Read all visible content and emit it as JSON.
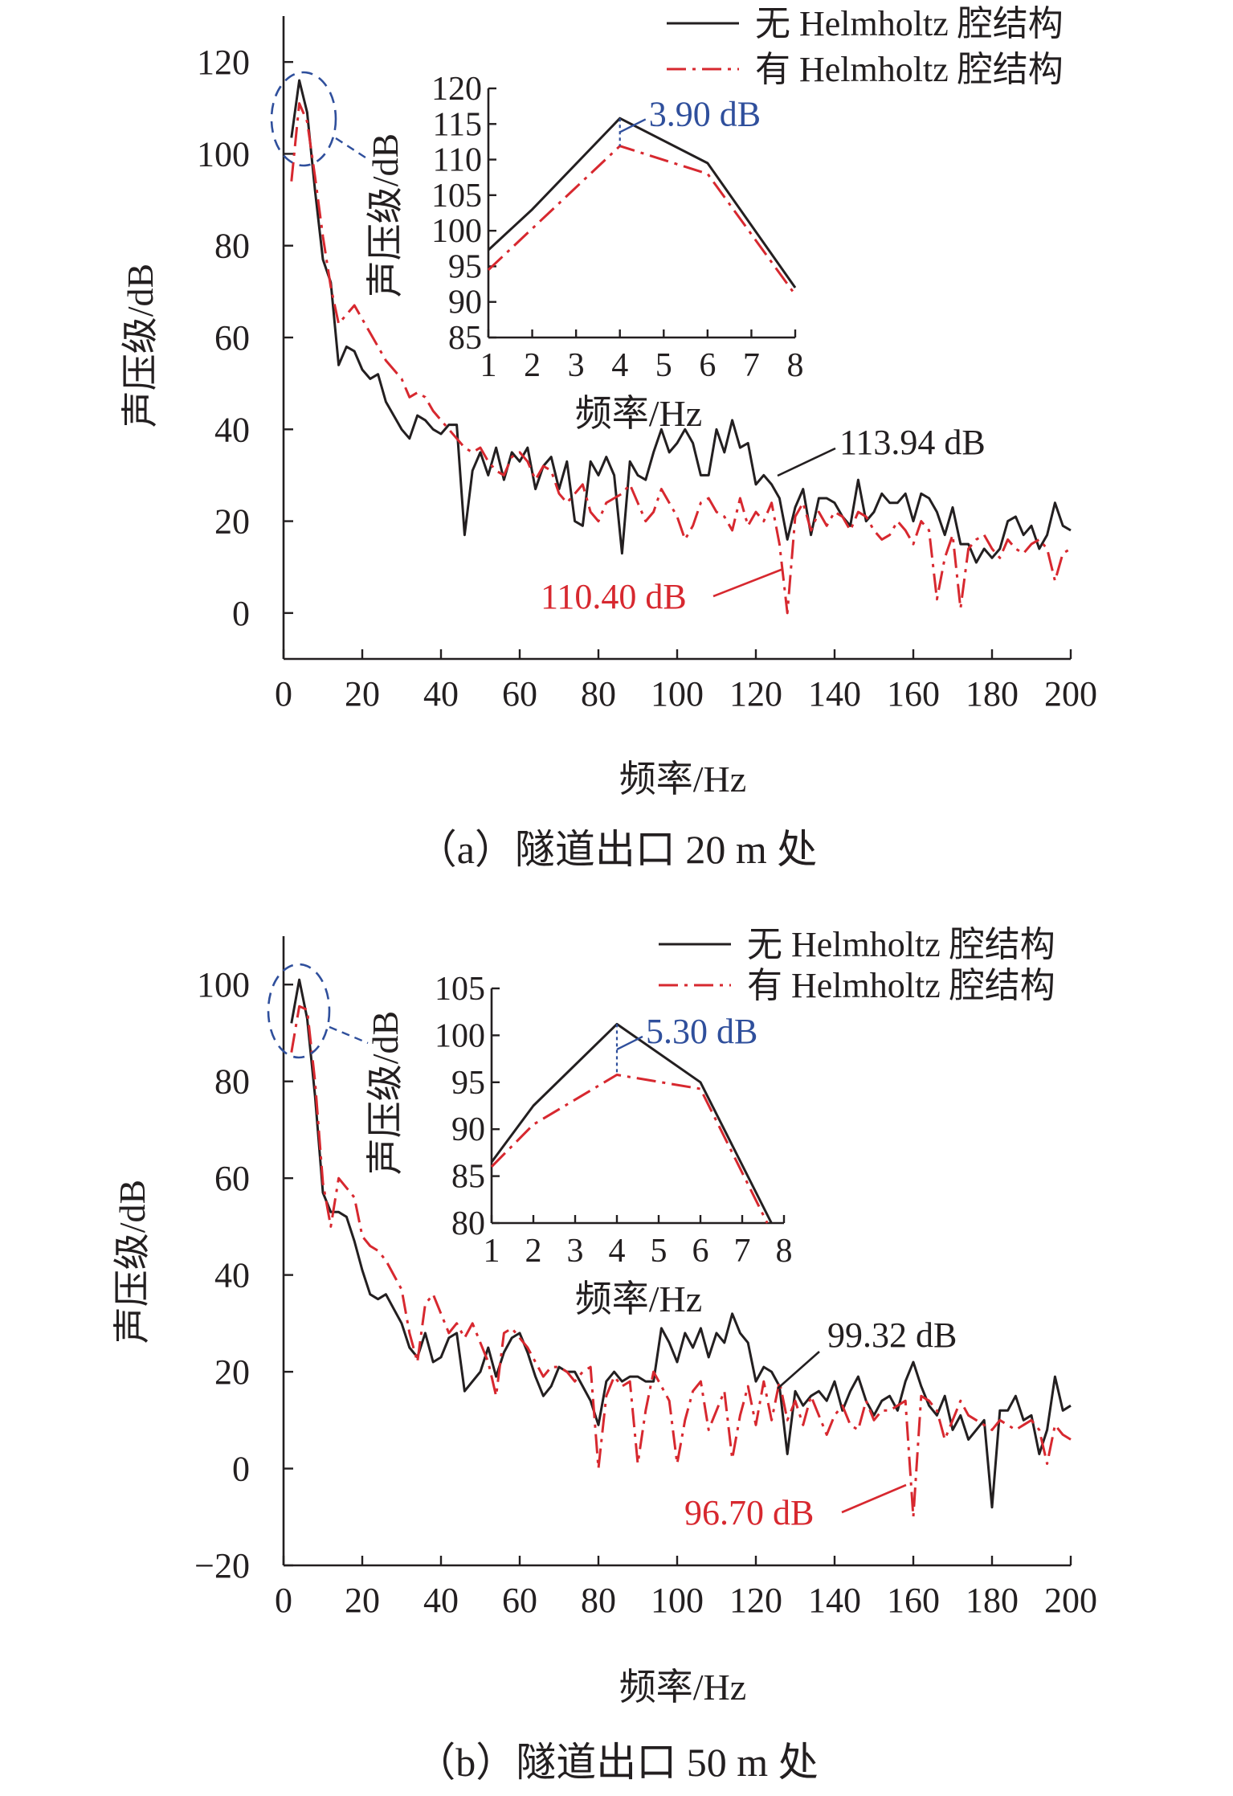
{
  "legend": {
    "solid_label": "无 Helmholtz 腔结构",
    "dashed_label": "有 Helmholtz 腔结构"
  },
  "colors": {
    "solid": "#231f20",
    "dashed": "#d7282f",
    "highlight": "#2f4f9c"
  },
  "chart_data": [
    {
      "type": "line",
      "panel": "a",
      "caption": "（a）隧道出口 20 m 处",
      "xlabel": "频率/Hz",
      "ylabel": "声压级/dB",
      "xlim": [
        0,
        200
      ],
      "ylim": [
        -10,
        130
      ],
      "xticks": [
        0,
        20,
        40,
        60,
        80,
        100,
        120,
        140,
        160,
        180,
        200
      ],
      "yticks": [
        0,
        20,
        40,
        60,
        80,
        100,
        120
      ],
      "x": [
        2,
        4,
        6,
        8,
        10,
        12,
        14,
        16,
        18,
        20,
        22,
        24,
        26,
        28,
        30,
        32,
        34,
        36,
        38,
        40,
        42,
        44,
        46,
        48,
        50,
        52,
        54,
        56,
        58,
        60,
        62,
        64,
        66,
        68,
        70,
        72,
        74,
        76,
        78,
        80,
        82,
        84,
        86,
        88,
        90,
        92,
        94,
        96,
        98,
        100,
        102,
        104,
        106,
        108,
        110,
        112,
        114,
        116,
        118,
        120,
        122,
        124,
        126,
        128,
        130,
        132,
        134,
        136,
        138,
        140,
        142,
        144,
        146,
        148,
        150,
        152,
        154,
        156,
        158,
        160,
        162,
        164,
        166,
        168,
        170,
        172,
        174,
        176,
        178,
        180,
        182,
        184,
        186,
        188,
        190,
        192,
        194,
        196,
        198,
        200
      ],
      "series": [
        {
          "name": "无 Helmholtz 腔结构",
          "style": "solid",
          "values": [
            103.5,
            116.0,
            109.0,
            92.0,
            77.0,
            72.0,
            54.0,
            58.0,
            57.0,
            53.0,
            51.0,
            52.0,
            46.0,
            43.0,
            40.0,
            38.0,
            43.0,
            42.0,
            40.0,
            39.0,
            41.0,
            41.0,
            17.0,
            31.0,
            35.0,
            30.0,
            36.0,
            29.0,
            35.0,
            33.0,
            36.0,
            27.0,
            32.0,
            34.0,
            27.0,
            33.0,
            20.0,
            19.0,
            33.0,
            30.0,
            34.0,
            30.0,
            13.0,
            33.0,
            30.0,
            29.0,
            35.0,
            40.0,
            35.0,
            37.0,
            40.0,
            37.0,
            30.0,
            30.0,
            40.0,
            35.0,
            42.0,
            36.0,
            37.0,
            28.0,
            30.0,
            28.0,
            25.0,
            16.0,
            23.0,
            27.0,
            17.0,
            25.0,
            25.0,
            24.0,
            21.0,
            19.0,
            29.0,
            20.0,
            22.0,
            26.0,
            24.0,
            24.0,
            26.0,
            20.0,
            26.0,
            25.0,
            22.0,
            17.0,
            23.0,
            15.0,
            15.0,
            11.0,
            14.0,
            12.0,
            14.0,
            20.0,
            21.0,
            17.0,
            19.0,
            14.0,
            17.0,
            24.0,
            19.0,
            18.0
          ]
        },
        {
          "name": "有 Helmholtz 腔结构",
          "style": "dash-dot",
          "values": [
            94.0,
            111.0,
            107.0,
            95.0,
            82.0,
            71.0,
            63.0,
            65.0,
            67.0,
            64.0,
            61.0,
            58.0,
            55.0,
            53.0,
            51.0,
            47.0,
            48.0,
            47.0,
            44.0,
            42.0,
            40.0,
            38.0,
            36.0,
            35.0,
            36.0,
            33.0,
            31.0,
            30.0,
            34.0,
            35.0,
            33.0,
            29.0,
            32.0,
            31.0,
            26.0,
            24.0,
            26.0,
            28.0,
            22.0,
            20.0,
            24.0,
            25.0,
            26.0,
            28.0,
            24.0,
            20.0,
            22.0,
            27.0,
            24.0,
            21.0,
            16.0,
            19.0,
            24.0,
            25.0,
            22.0,
            21.0,
            18.0,
            25.0,
            19.0,
            22.0,
            20.0,
            24.0,
            15.0,
            0.0,
            21.0,
            24.0,
            18.0,
            22.0,
            19.0,
            22.0,
            21.0,
            18.0,
            22.0,
            21.0,
            18.0,
            16.0,
            17.0,
            20.0,
            18.0,
            15.0,
            20.0,
            18.0,
            3.0,
            12.0,
            17.0,
            1.0,
            14.0,
            16.0,
            17.0,
            14.0,
            12.0,
            16.0,
            14.0,
            13.0,
            15.0,
            16.0,
            14.0,
            7.0,
            13.0,
            14.0
          ]
        }
      ],
      "annotations": [
        {
          "label": "113.94 dB",
          "series": "无 Helmholtz 腔结构"
        },
        {
          "label": "110.40 dB",
          "series": "有 Helmholtz 腔结构"
        }
      ],
      "inset": {
        "xlabel": "频率/Hz",
        "ylabel": "声压级/dB",
        "xlim": [
          1,
          8
        ],
        "ylim": [
          85,
          120
        ],
        "xticks": [
          1,
          2,
          3,
          4,
          5,
          6,
          7,
          8
        ],
        "yticks": [
          85,
          90,
          95,
          100,
          105,
          110,
          115,
          120
        ],
        "x_solid": [
          1,
          2,
          4,
          6,
          8
        ],
        "solid": [
          97.3,
          103.0,
          115.8,
          109.5,
          92.0
        ],
        "x_dashed": [
          1,
          4,
          6,
          8
        ],
        "dashed": [
          94.5,
          111.9,
          108.0,
          91.0
        ],
        "diff_at_x": 4,
        "diff_label": "3.90 dB"
      }
    },
    {
      "type": "line",
      "panel": "b",
      "caption": "（b）隧道出口 50 m 处",
      "xlabel": "频率/Hz",
      "ylabel": "声压级/dB",
      "xlim": [
        0,
        200
      ],
      "ylim": [
        -20,
        110
      ],
      "xticks": [
        0,
        20,
        40,
        60,
        80,
        100,
        120,
        140,
        160,
        180,
        200
      ],
      "yticks": [
        -20,
        0,
        20,
        40,
        60,
        80,
        100
      ],
      "x": [
        2,
        4,
        6,
        8,
        10,
        12,
        14,
        16,
        18,
        20,
        22,
        24,
        26,
        28,
        30,
        32,
        34,
        36,
        38,
        40,
        42,
        44,
        46,
        48,
        50,
        52,
        54,
        56,
        58,
        60,
        62,
        64,
        66,
        68,
        70,
        72,
        74,
        76,
        78,
        80,
        82,
        84,
        86,
        88,
        90,
        92,
        94,
        96,
        98,
        100,
        102,
        104,
        106,
        108,
        110,
        112,
        114,
        116,
        118,
        120,
        122,
        124,
        126,
        128,
        130,
        132,
        134,
        136,
        138,
        140,
        142,
        144,
        146,
        148,
        150,
        152,
        154,
        156,
        158,
        160,
        162,
        164,
        166,
        168,
        170,
        172,
        174,
        176,
        178,
        180,
        182,
        184,
        186,
        188,
        190,
        192,
        194,
        196,
        198,
        200
      ],
      "series": [
        {
          "name": "无 Helmholtz 腔结构",
          "style": "solid",
          "values": [
            92.0,
            101.0,
            93.0,
            77.0,
            57.0,
            53.0,
            53.0,
            52.0,
            47.0,
            41.0,
            36.0,
            35.0,
            36.0,
            33.0,
            30.0,
            25.0,
            23.0,
            28.0,
            22.0,
            23.0,
            27.0,
            28.0,
            16.0,
            18.0,
            20.0,
            25.0,
            19.0,
            24.0,
            27.0,
            28.0,
            24.0,
            19.0,
            15.0,
            17.0,
            21.0,
            20.0,
            20.0,
            17.0,
            14.0,
            9.0,
            18.0,
            20.0,
            18.0,
            19.0,
            19.0,
            18.0,
            18.0,
            29.0,
            26.0,
            22.0,
            28.0,
            25.0,
            29.0,
            23.0,
            28.0,
            26.0,
            32.0,
            28.0,
            26.0,
            18.0,
            21.0,
            20.0,
            17.0,
            3.0,
            16.0,
            13.0,
            15.0,
            16.0,
            14.0,
            18.0,
            12.0,
            16.0,
            19.0,
            14.0,
            11.0,
            14.0,
            15.0,
            12.0,
            18.0,
            22.0,
            17.0,
            13.0,
            11.0,
            15.0,
            8.0,
            11.0,
            6.0,
            8.0,
            10.0,
            -8.0,
            12.0,
            12.0,
            15.0,
            10.0,
            11.0,
            3.0,
            8.0,
            19.0,
            12.0,
            13.0
          ]
        },
        {
          "name": "有 Helmholtz 腔结构",
          "style": "dash-dot",
          "values": [
            86.0,
            95.5,
            94.8,
            80.0,
            59.0,
            50.0,
            60.0,
            58.0,
            56.0,
            48.0,
            46.0,
            45.0,
            43.0,
            40.0,
            37.0,
            28.0,
            22.0,
            34.0,
            36.0,
            32.0,
            28.0,
            30.0,
            27.0,
            30.0,
            26.0,
            22.0,
            15.0,
            28.0,
            29.0,
            27.0,
            25.0,
            22.0,
            19.0,
            21.0,
            21.0,
            20.0,
            18.0,
            20.0,
            21.0,
            0.0,
            15.0,
            19.0,
            17.0,
            18.0,
            1.0,
            12.0,
            20.0,
            17.0,
            14.0,
            1.0,
            10.0,
            16.0,
            18.0,
            8.0,
            12.0,
            16.0,
            2.0,
            11.0,
            17.0,
            9.0,
            18.0,
            10.0,
            18.0,
            10.0,
            14.0,
            9.0,
            15.0,
            11.0,
            7.0,
            11.0,
            13.0,
            9.0,
            8.0,
            14.0,
            10.0,
            12.0,
            12.0,
            13.0,
            14.0,
            -10.0,
            15.0,
            14.0,
            12.0,
            6.0,
            10.0,
            14.0,
            11.0,
            10.0,
            9.0,
            8.0,
            10.0,
            9.0,
            8.0,
            9.0,
            10.0,
            8.0,
            1.0,
            9.0,
            7.0,
            6.0
          ]
        }
      ],
      "annotations": [
        {
          "label": "99.32 dB",
          "series": "无 Helmholtz 腔结构"
        },
        {
          "label": "96.70 dB",
          "series": "有 Helmholtz 腔结构"
        }
      ],
      "inset": {
        "xlabel": "频率/Hz",
        "ylabel": "声压级/dB",
        "xlim": [
          1,
          8
        ],
        "ylim": [
          80,
          105
        ],
        "xticks": [
          1,
          2,
          3,
          4,
          5,
          6,
          7,
          8
        ],
        "yticks": [
          80,
          85,
          90,
          95,
          100,
          105
        ],
        "x_solid": [
          1,
          2,
          4,
          6,
          7.7
        ],
        "solid": [
          86.5,
          92.5,
          101.2,
          95.0,
          80.0
        ],
        "x_dashed": [
          1,
          2,
          4,
          6,
          7.6
        ],
        "dashed": [
          86.0,
          90.5,
          95.8,
          94.3,
          80.0
        ],
        "diff_at_x": 4,
        "diff_label": "5.30 dB"
      }
    }
  ]
}
